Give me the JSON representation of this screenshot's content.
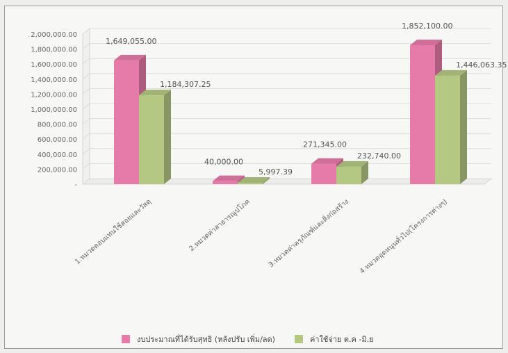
{
  "colors": {
    "series1": "#e67aa8",
    "series2": "#b4c882",
    "axis_text": "#666666",
    "label_text": "#555555"
  },
  "chart_data": {
    "type": "bar",
    "categories": [
      "1.หมวดตอบแทนใช้สอยและวัสดุ",
      "2.หมวดค่าสาธารณูปโภค",
      "3.หมวดค่าครุภัณฑ์และสิ่งก่อสร้าง",
      "4.หมวดอุดหนุนทั่วไป(โครงการต่างๆ)"
    ],
    "series": [
      {
        "name": "งบประมาณที่ได้รับสุทธิ (หลังปรับ เพิ่ม/ลด)",
        "values": [
          1649055.0,
          40000.0,
          271345.0,
          1852100.0
        ],
        "labels": [
          "1,649,055.00",
          "40,000.00",
          "271,345.00",
          "1,852,100.00"
        ]
      },
      {
        "name": "ค่าใช้จ่าย ต.ค -มิ.ย",
        "values": [
          1184307.25,
          5997.39,
          232740.0,
          1446063.35
        ],
        "labels": [
          "1,184,307.25",
          "5,997.39",
          "232,740.00",
          "1,446,063.35"
        ]
      }
    ],
    "ylim": [
      0,
      2000000
    ],
    "y_ticks": [
      "-",
      "200,000.00",
      "400,000.00",
      "600,000.00",
      "800,000.00",
      "1,000,000.00",
      "1,200,000.00",
      "1,400,000.00",
      "1,600,000.00",
      "1,800,000.00",
      "2,000,000.00"
    ],
    "grid": true,
    "legend_position": "bottom",
    "style": "3d-column"
  }
}
